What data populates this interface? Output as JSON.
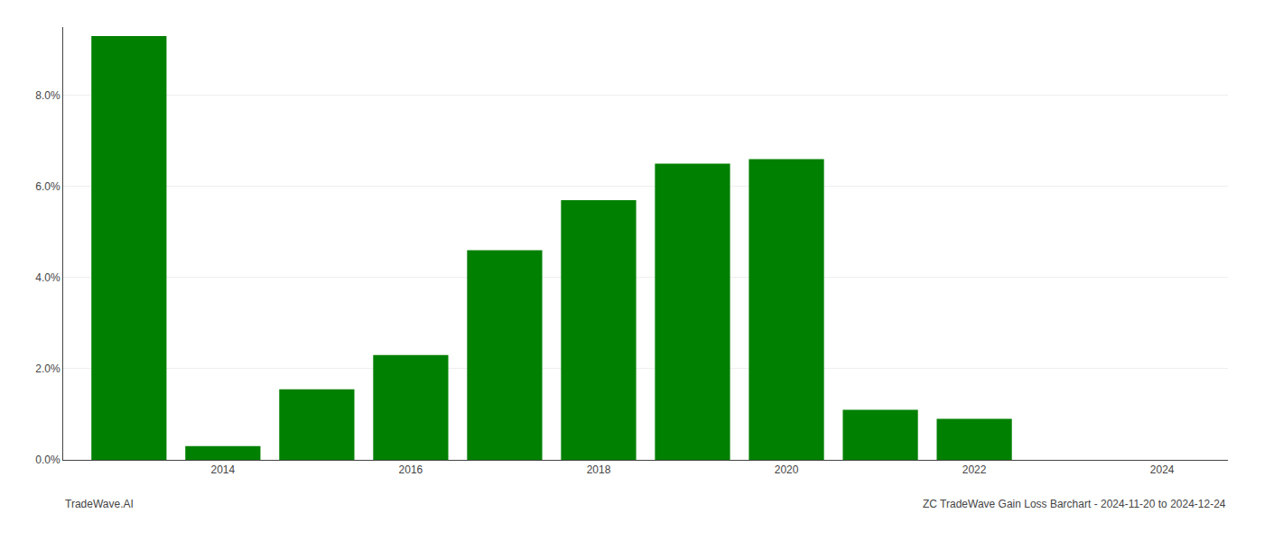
{
  "chart_data": {
    "type": "bar",
    "x": [
      2013,
      2014,
      2015,
      2016,
      2017,
      2018,
      2019,
      2020,
      2021,
      2022,
      2023,
      2024
    ],
    "values": [
      0.093,
      0.003,
      0.0155,
      0.023,
      0.046,
      0.057,
      0.065,
      0.066,
      0.011,
      0.009,
      0.0,
      0.0
    ],
    "color": "#008000",
    "xlim": [
      2012.3,
      2024.7
    ],
    "xticks": [
      2014,
      2016,
      2018,
      2020,
      2022,
      2024
    ],
    "ylim": [
      0,
      0.095
    ],
    "yticks": [
      {
        "value": 0.0,
        "label": "0.0%"
      },
      {
        "value": 0.02,
        "label": "2.0%"
      },
      {
        "value": 0.04,
        "label": "4.0%"
      },
      {
        "value": 0.06,
        "label": "6.0%"
      },
      {
        "value": 0.08,
        "label": "8.0%"
      }
    ],
    "grid": "y",
    "annotations": [
      "TradeWave.AI",
      "ZC TradeWave Gain Loss Barchart - 2024-11-20 to 2024-12-24"
    ]
  }
}
